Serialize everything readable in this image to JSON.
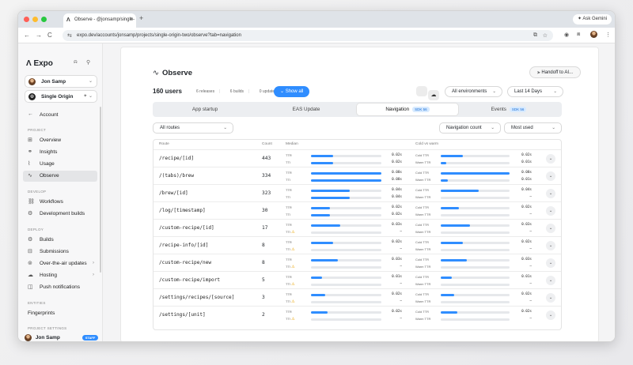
{
  "browser": {
    "tab_title": "Observe - @jonsamp/single-",
    "url": "expo.dev/accounts/jonsamp/projects/single-origin-two/observe?tab=navigation",
    "gemini_label": "Ask Gemini"
  },
  "sidebar": {
    "logo": "Expo",
    "user_selector": "Jon Samp",
    "project_selector": "Single Origin",
    "account_link": "Account",
    "sections": {
      "project": "PROJECT",
      "develop": "DEVELOP",
      "deploy": "DEPLOY",
      "entities": "ENTITIES",
      "project_settings": "PROJECT SETTINGS"
    },
    "items": {
      "overview": "Overview",
      "insights": "Insights",
      "usage": "Usage",
      "observe": "Observe",
      "workflows": "Workflows",
      "dev_builds": "Development builds",
      "builds": "Builds",
      "submissions": "Submissions",
      "ota": "Over-the-air updates",
      "hosting": "Hosting",
      "push": "Push notifications",
      "fingerprints": "Fingerprints"
    },
    "footer_user": "Jon Samp",
    "footer_badge": "STAFF"
  },
  "header": {
    "title": "Observe",
    "handoff_button": "Handoff to AI...",
    "users": "160 users",
    "releases": "6 releases",
    "builds": "6 builds",
    "updates": "0 updates",
    "show_all": "Show all",
    "environment": "All environments",
    "date_range": "Last 14 Days"
  },
  "tabs": {
    "app_startup": "App startup",
    "eas_update": "EAS Update",
    "navigation": "Navigation",
    "events": "Events",
    "sdk": "SDK 56"
  },
  "filters": {
    "routes": "All routes",
    "metric": "Navigation count",
    "sort": "Most used"
  },
  "table": {
    "headers": {
      "route": "Route",
      "count": "Count",
      "median": "Median",
      "cold_warm": "Cold vs warm"
    },
    "labels": {
      "ttr": "TTR",
      "tti": "TTI",
      "cold": "Cold TTR",
      "warm": "Warm TTR"
    },
    "rows": [
      {
        "route": "/recipe/[id]",
        "count": "443",
        "ttr": "0.02s",
        "tti": "0.02s",
        "ttr_p": 0.32,
        "tti_p": 0.32,
        "tti_warn": false,
        "cold": "0.02s",
        "warm": "0.01s",
        "cold_p": 0.32,
        "warm_p": 0.08
      },
      {
        "route": "/(tabs)/brew",
        "count": "334",
        "ttr": "0.08s",
        "tti": "0.08s",
        "ttr_p": 1.0,
        "tti_p": 1.0,
        "tti_warn": false,
        "cold": "0.08s",
        "warm": "0.01s",
        "cold_p": 1.0,
        "warm_p": 0.1
      },
      {
        "route": "/brew/[id]",
        "count": "323",
        "ttr": "0.04s",
        "tti": "0.04s",
        "ttr_p": 0.55,
        "tti_p": 0.55,
        "tti_warn": false,
        "cold": "0.04s",
        "warm": "—",
        "cold_p": 0.55,
        "warm_p": 0
      },
      {
        "route": "/log/[timestamp]",
        "count": "30",
        "ttr": "0.02s",
        "tti": "0.02s",
        "ttr_p": 0.27,
        "tti_p": 0.27,
        "tti_warn": false,
        "cold": "0.02s",
        "warm": "—",
        "cold_p": 0.27,
        "warm_p": 0
      },
      {
        "route": "/custom-recipe/[id]",
        "count": "17",
        "ttr": "0.03s",
        "tti": "—",
        "ttr_p": 0.42,
        "tti_p": 0,
        "tti_warn": true,
        "cold": "0.03s",
        "warm": "—",
        "cold_p": 0.42,
        "warm_p": 0
      },
      {
        "route": "/recipe-info/[id]",
        "count": "8",
        "ttr": "0.02s",
        "tti": "—",
        "ttr_p": 0.32,
        "tti_p": 0,
        "tti_warn": true,
        "cold": "0.02s",
        "warm": "—",
        "cold_p": 0.32,
        "warm_p": 0
      },
      {
        "route": "/custom-recipe/new",
        "count": "8",
        "ttr": "0.03s",
        "tti": "—",
        "ttr_p": 0.38,
        "tti_p": 0,
        "tti_warn": true,
        "cold": "0.03s",
        "warm": "—",
        "cold_p": 0.38,
        "warm_p": 0
      },
      {
        "route": "/custom-recipe/import",
        "count": "5",
        "ttr": "0.01s",
        "tti": "—",
        "ttr_p": 0.16,
        "tti_p": 0,
        "tti_warn": true,
        "cold": "0.01s",
        "warm": "—",
        "cold_p": 0.16,
        "warm_p": 0
      },
      {
        "route": "/settings/recipes/[source]",
        "count": "3",
        "ttr": "0.02s",
        "tti": "—",
        "ttr_p": 0.2,
        "tti_p": 0,
        "tti_warn": true,
        "cold": "0.02s",
        "warm": "—",
        "cold_p": 0.2,
        "warm_p": 0
      },
      {
        "route": "/settings/[unit]",
        "count": "2",
        "ttr": "0.02s",
        "tti": "—",
        "ttr_p": 0.24,
        "tti_p": 0,
        "tti_warn": true,
        "cold": "0.02s",
        "warm": "—",
        "cold_p": 0.24,
        "warm_p": 0
      }
    ]
  }
}
